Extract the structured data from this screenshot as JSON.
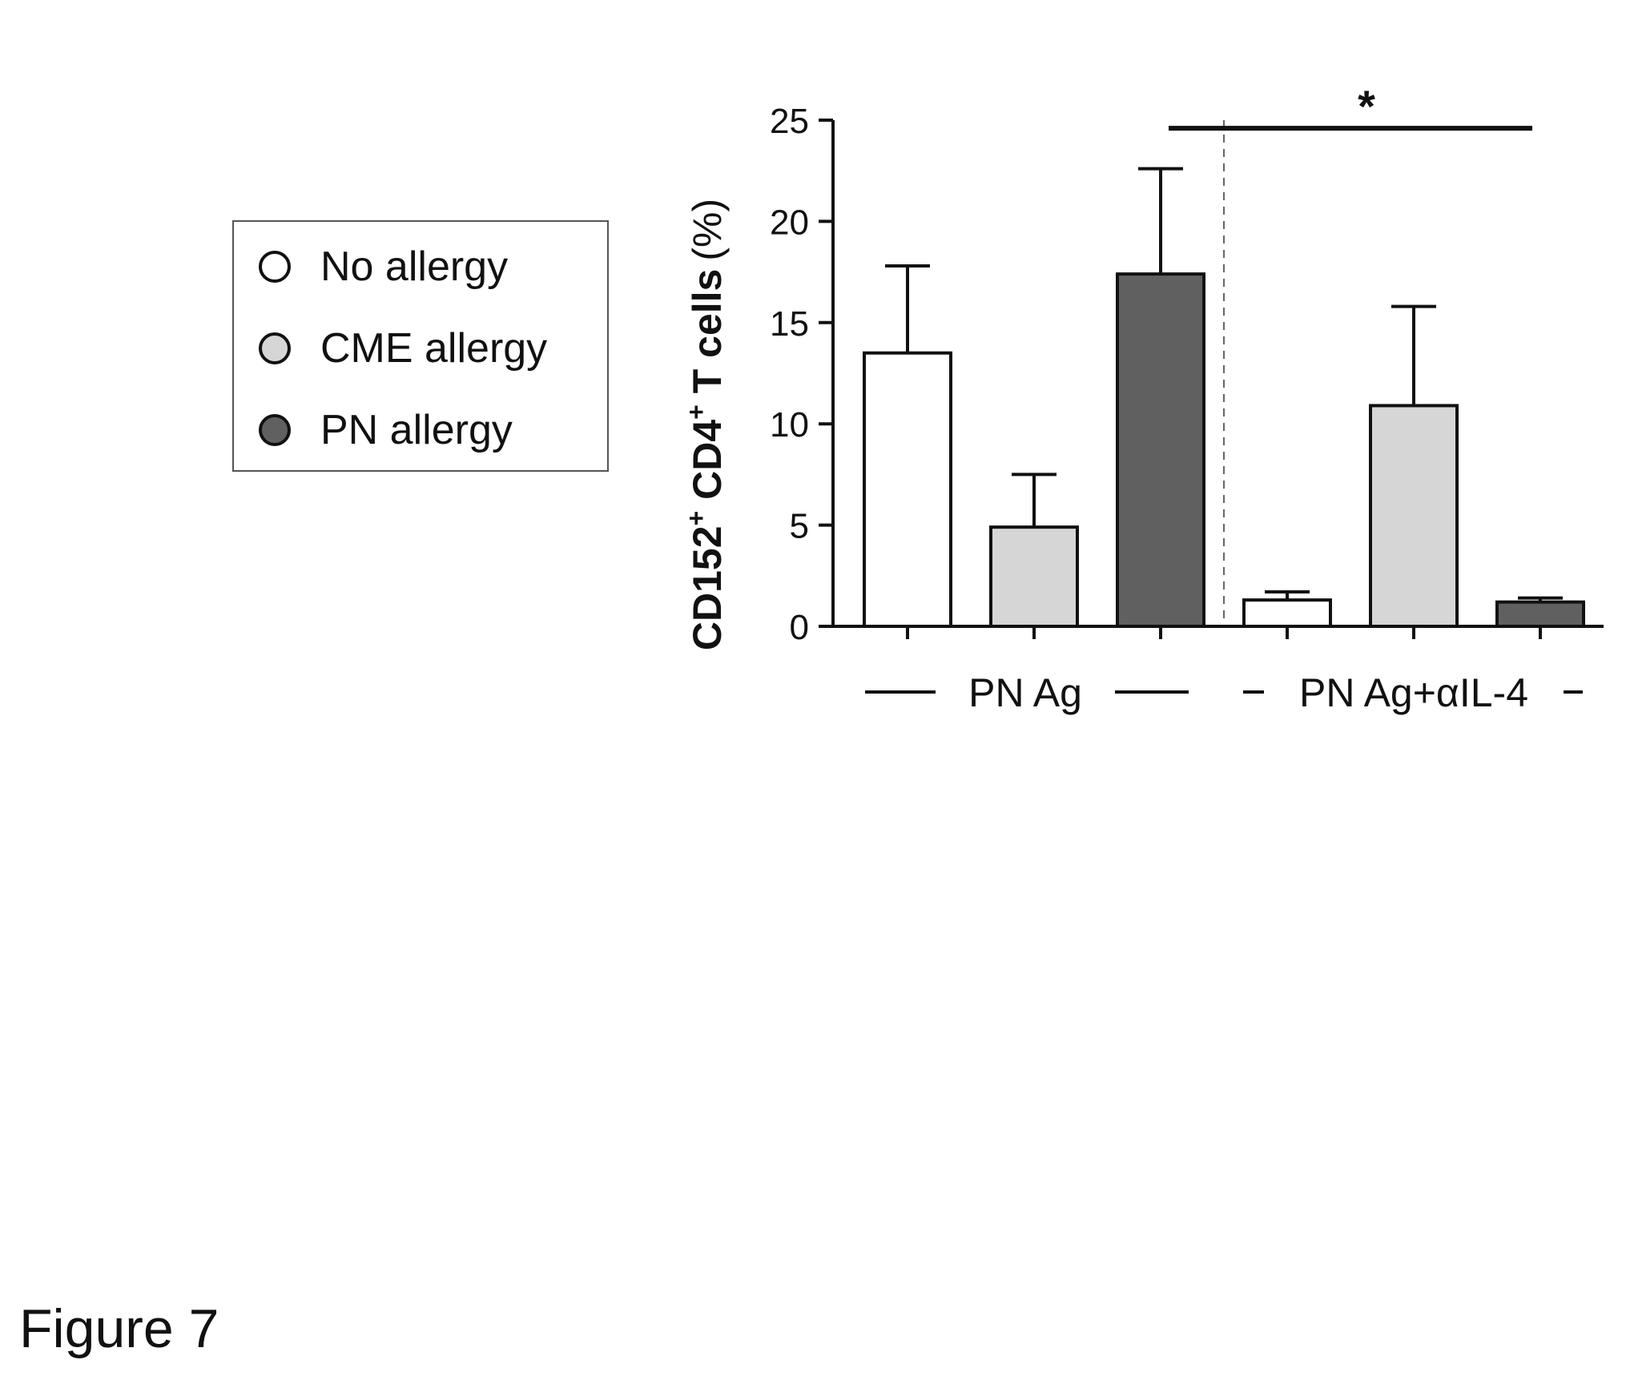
{
  "figure_label": "Figure 7",
  "legend": {
    "items": [
      {
        "label": "No allergy",
        "color": "#ffffff"
      },
      {
        "label": "CME allergy",
        "color": "#d6d6d6"
      },
      {
        "label": "PN allergy",
        "color": "#606060"
      }
    ]
  },
  "chart_data": {
    "type": "bar",
    "ylabel_main": "CD152",
    "ylabel_sup1": "+",
    "ylabel_mid": " CD4",
    "ylabel_sup2": "+",
    "ylabel_end": " T cells",
    "ylabel_unit": "(%)",
    "ylim": [
      0,
      25
    ],
    "yticks": [
      "0",
      "5",
      "10",
      "15",
      "20",
      "25"
    ],
    "groups": [
      {
        "label": "PN Ag"
      },
      {
        "label": "PN Ag+αIL-4"
      }
    ],
    "series": [
      {
        "name": "No allergy",
        "color": "#ffffff",
        "values": [
          13.5,
          1.3
        ],
        "errors": [
          4.3,
          0.4
        ]
      },
      {
        "name": "CME allergy",
        "color": "#d6d6d6",
        "values": [
          4.9,
          10.9
        ],
        "errors": [
          2.6,
          4.9
        ]
      },
      {
        "name": "PN allergy",
        "color": "#606060",
        "values": [
          17.4,
          1.2
        ],
        "errors": [
          5.2,
          0.2
        ]
      }
    ],
    "significance": {
      "label": "*",
      "y": 24.6
    },
    "grid": false,
    "legend_position": "left"
  }
}
